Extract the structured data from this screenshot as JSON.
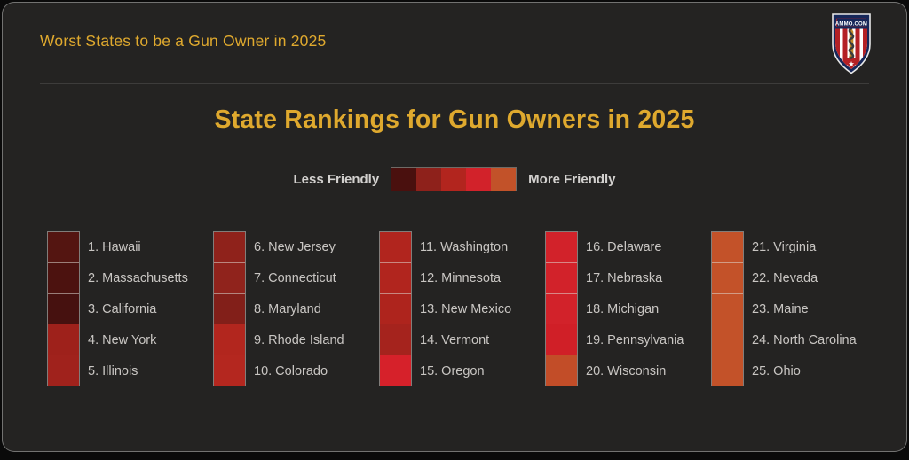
{
  "header": {
    "title": "Worst States to be a Gun Owner in 2025"
  },
  "logo": {
    "brand": "AMMO.COM"
  },
  "main": {
    "title": "State Rankings for Gun Owners in 2025"
  },
  "legend": {
    "less_label": "Less Friendly",
    "more_label": "More Friendly"
  },
  "theme": {
    "page_background": "#0a0a0a",
    "card_background": "#242322",
    "accent_gold": "#dfa92e",
    "text_light": "#c9c6c3"
  },
  "chart_data": {
    "type": "table",
    "title": "State Rankings for Gun Owners in 2025",
    "legend": {
      "left_label": "Less Friendly",
      "right_label": "More Friendly",
      "scale_colors": [
        "#4a100e",
        "#8e211b",
        "#b2251e",
        "#d2222a",
        "#c25229"
      ]
    },
    "layout": {
      "columns": 5,
      "rows_per_column": 5
    },
    "rankings": [
      {
        "rank": 1,
        "state": "Hawaii",
        "color": "#541511"
      },
      {
        "rank": 2,
        "state": "Massachusetts",
        "color": "#4c120f"
      },
      {
        "rank": 3,
        "state": "California",
        "color": "#46110f"
      },
      {
        "rank": 4,
        "state": "New York",
        "color": "#9e211b"
      },
      {
        "rank": 5,
        "state": "Illinois",
        "color": "#a0221c"
      },
      {
        "rank": 6,
        "state": "New Jersey",
        "color": "#8f221b"
      },
      {
        "rank": 7,
        "state": "Connecticut",
        "color": "#90231c"
      },
      {
        "rank": 8,
        "state": "Maryland",
        "color": "#821f19"
      },
      {
        "rank": 9,
        "state": "Rhode Island",
        "color": "#b2261e"
      },
      {
        "rank": 10,
        "state": "Colorado",
        "color": "#b4271f"
      },
      {
        "rank": 11,
        "state": "Washington",
        "color": "#b1251e"
      },
      {
        "rank": 12,
        "state": "Minnesota",
        "color": "#b1251e"
      },
      {
        "rank": 13,
        "state": "New Mexico",
        "color": "#ae241d"
      },
      {
        "rank": 14,
        "state": "Vermont",
        "color": "#a5231d"
      },
      {
        "rank": 15,
        "state": "Oregon",
        "color": "#d6212a"
      },
      {
        "rank": 16,
        "state": "Delaware",
        "color": "#d2222a"
      },
      {
        "rank": 17,
        "state": "Nebraska",
        "color": "#d2222a"
      },
      {
        "rank": 18,
        "state": "Michigan",
        "color": "#d2222a"
      },
      {
        "rank": 19,
        "state": "Pennsylvania",
        "color": "#d01f27"
      },
      {
        "rank": 20,
        "state": "Wisconsin",
        "color": "#c24d28"
      },
      {
        "rank": 21,
        "state": "Virginia",
        "color": "#c35229"
      },
      {
        "rank": 22,
        "state": "Nevada",
        "color": "#c35229"
      },
      {
        "rank": 23,
        "state": "Maine",
        "color": "#c35229"
      },
      {
        "rank": 24,
        "state": "North Carolina",
        "color": "#c35229"
      },
      {
        "rank": 25,
        "state": "Ohio",
        "color": "#c35229"
      }
    ]
  }
}
